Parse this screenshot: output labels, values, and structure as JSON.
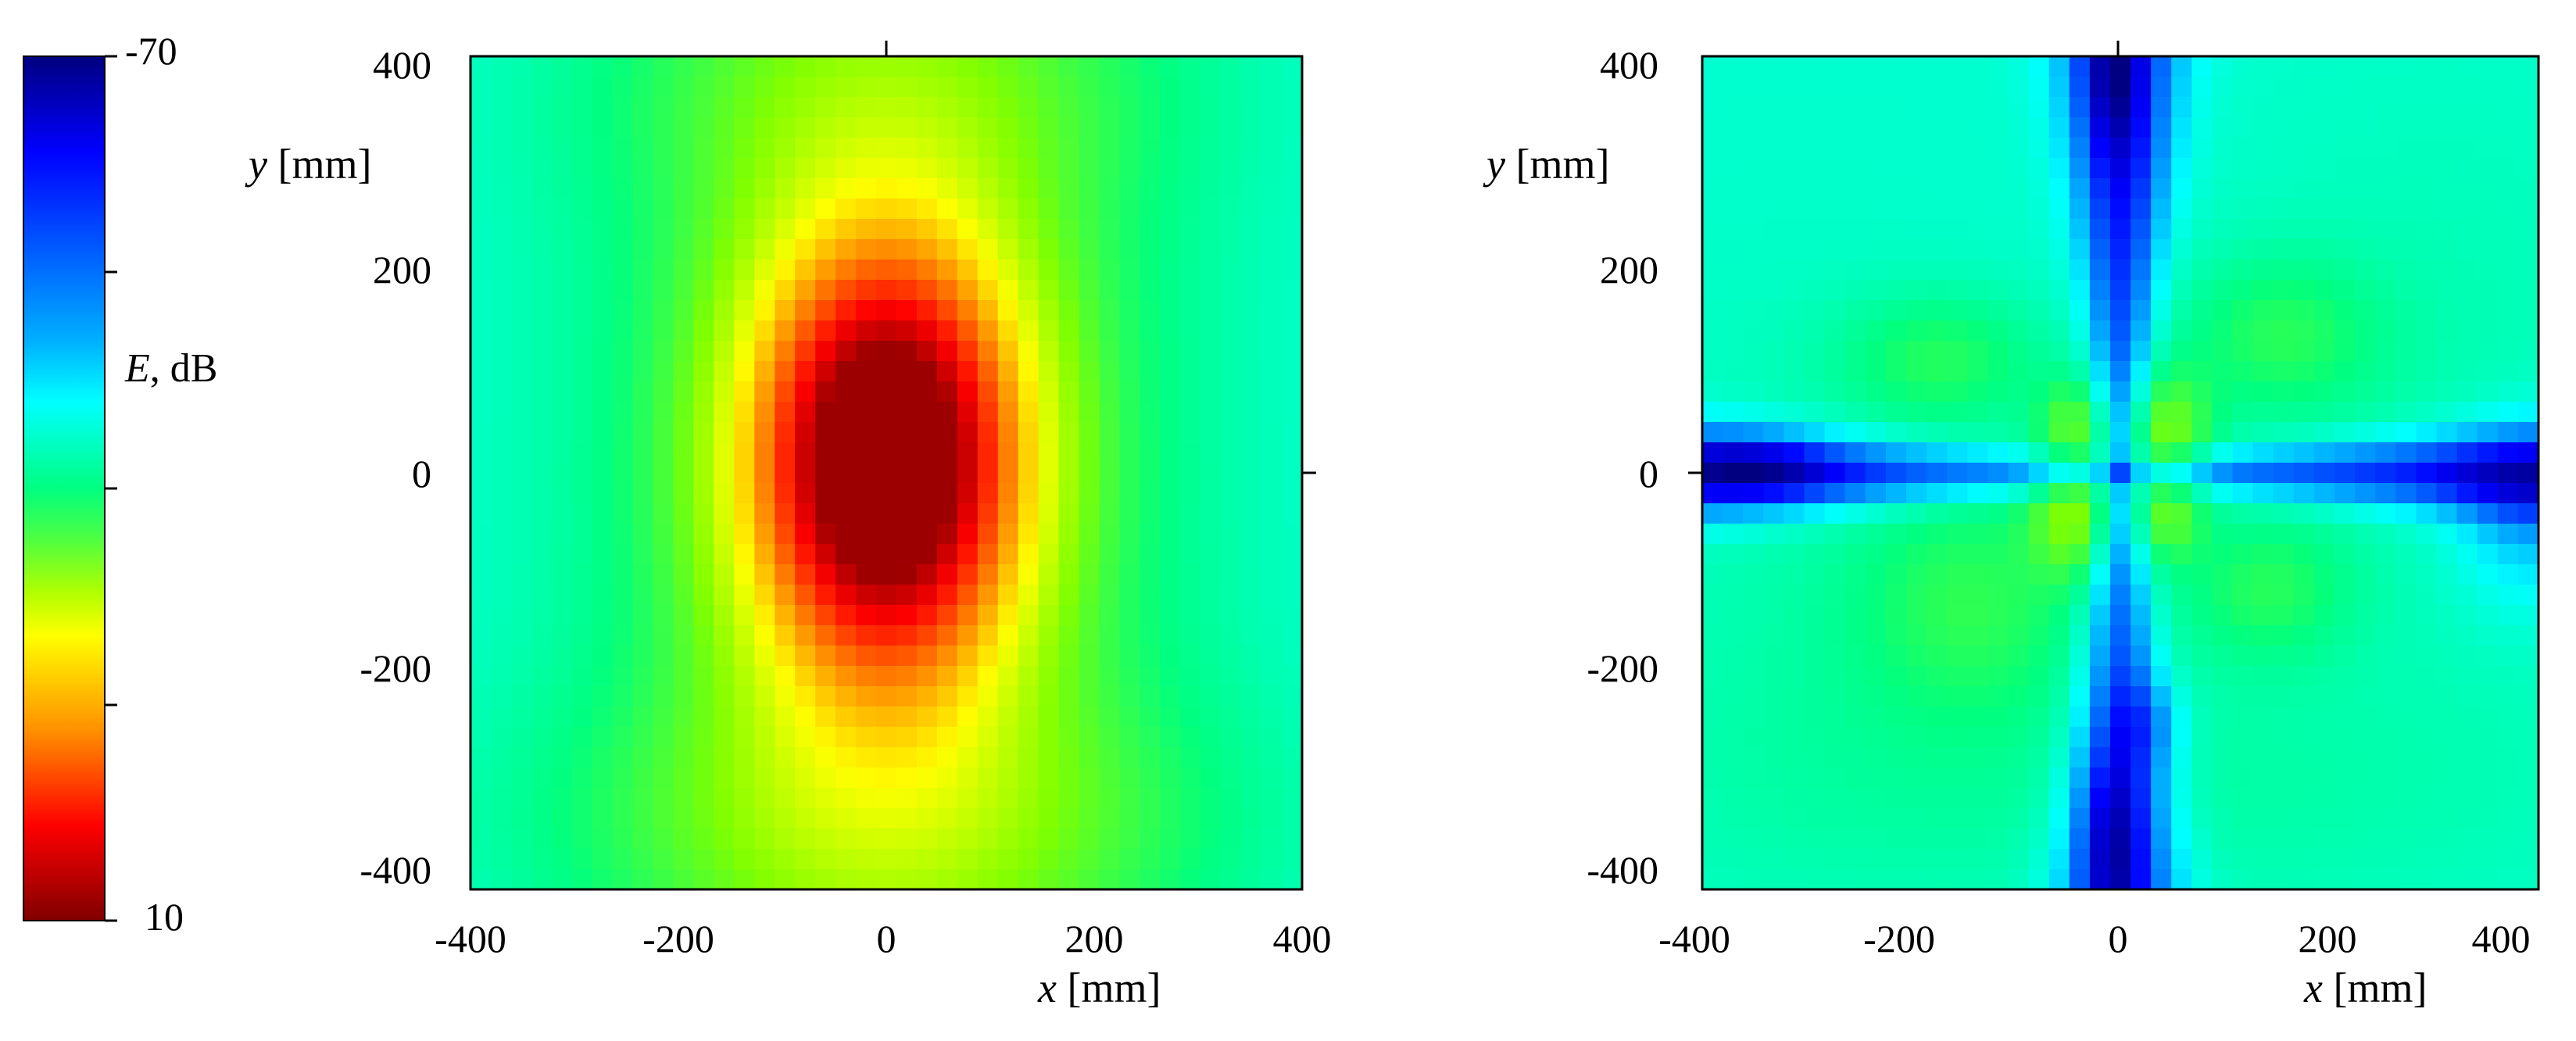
{
  "colorbar": {
    "label_var": "E",
    "label_unit": ", dB",
    "top_label": "-70",
    "bottom_label": "10",
    "min": -70,
    "max": 10,
    "colormap": [
      "#800000",
      "#ff0000",
      "#ff8000",
      "#ffff00",
      "#80ff00",
      "#00ff80",
      "#00ffff",
      "#0080ff",
      "#0000ff",
      "#000080"
    ]
  },
  "chart_data": [
    {
      "type": "heatmap",
      "title": "",
      "xlabel_var": "x",
      "xlabel_unit": " [mm]",
      "ylabel_var": "y",
      "ylabel_unit": " [mm]",
      "xlim": [
        -400,
        400
      ],
      "ylim": [
        -400,
        400
      ],
      "xticks": [
        -400,
        -200,
        0,
        200,
        400
      ],
      "yticks": [
        -400,
        -200,
        0,
        200,
        400
      ],
      "grid_n": 41,
      "value_range": [
        -70,
        10
      ],
      "field": "Single dominant peak near (0, 0) at about 5 dB, elongated along y; field decays to about -40 dB at the left/right edges; upper and lower centre regions stay near -25 dB."
    },
    {
      "type": "heatmap",
      "title": "",
      "xlabel_var": "x",
      "xlabel_unit": " [mm]",
      "ylabel_var": "y",
      "ylabel_unit": " [mm]",
      "xlim": [
        -400,
        400
      ],
      "ylim": [
        -400,
        400
      ],
      "xticks": [
        -400,
        -200,
        0,
        200,
        400
      ],
      "yticks": [
        -400,
        -200,
        0,
        200,
        400
      ],
      "grid_n": 41,
      "value_range": [
        -70,
        10
      ],
      "field": "Background about -40 dB; deep nulls (about -65 dB) along the x = 0 and y = 0 axes forming a cross; four lobes near (±50, ±50) at about -27 dB with weaker lobes near (±150, ±120) at about -33 dB."
    }
  ]
}
